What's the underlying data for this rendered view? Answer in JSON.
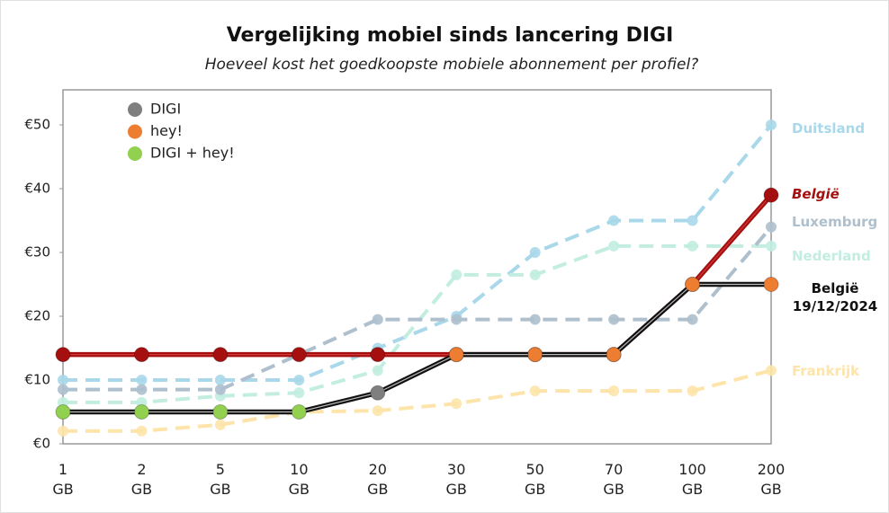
{
  "chart_data": {
    "type": "line",
    "title": "Vergelijking mobiel sinds lancering DIGI",
    "subtitle": "Hoeveel kost het goedkoopste mobiele abonnement per profiel?",
    "categories": [
      "1 GB",
      "2 GB",
      "5 GB",
      "10 GB",
      "20 GB",
      "30 GB",
      "50 GB",
      "70 GB",
      "100 GB",
      "200 GB"
    ],
    "ylim": [
      0,
      55.5
    ],
    "yticks": [
      {
        "value": 0,
        "label": "€0"
      },
      {
        "value": 10,
        "label": "€10"
      },
      {
        "value": 20,
        "label": "€20"
      },
      {
        "value": 30,
        "label": "€30"
      },
      {
        "value": 40,
        "label": "€40"
      },
      {
        "value": 50,
        "label": "€50"
      }
    ],
    "grid": false,
    "legend": [
      {
        "name": "DIGI",
        "color": "#7f7f7f"
      },
      {
        "name": "hey!",
        "color": "#ed7d31"
      },
      {
        "name": "DIGI + hey!",
        "color": "#92d050"
      }
    ],
    "series": [
      {
        "name": "Duitsland",
        "color": "#a8d8ea",
        "dashed": true,
        "values": [
          10,
          10,
          10,
          10,
          15,
          20,
          30,
          35,
          35,
          50
        ]
      },
      {
        "name": "Nederland",
        "color": "#c2ede0",
        "dashed": true,
        "values": [
          6.5,
          6.5,
          7.5,
          8,
          11.5,
          26.5,
          26.5,
          31,
          31,
          31
        ]
      },
      {
        "name": "Luxemburg",
        "color": "#aebfcd",
        "dashed": true,
        "values": [
          8.5,
          8.5,
          8.5,
          14,
          19.5,
          19.5,
          19.5,
          19.5,
          19.5,
          34
        ]
      },
      {
        "name": "Frankrijk",
        "color": "#fde4aa",
        "dashed": true,
        "values": [
          2,
          2,
          3,
          5,
          5.2,
          6.3,
          8.3,
          8.3,
          8.3,
          11.5
        ]
      },
      {
        "name": "België",
        "color": "#a50f0f",
        "dashed": false,
        "italic": true,
        "values": [
          14,
          14,
          14,
          14,
          14,
          14,
          14,
          14,
          25,
          39
        ]
      },
      {
        "name": "België 19/12/2024",
        "color": "#111111",
        "dashed": false,
        "values": [
          5,
          5,
          5,
          5,
          8,
          14,
          14,
          14,
          25,
          25
        ],
        "point_colors": [
          "#92d050",
          "#92d050",
          "#92d050",
          "#92d050",
          "#7f7f7f",
          "#ed7d31",
          "#ed7d31",
          "#ed7d31",
          "#ed7d31",
          "#ed7d31"
        ]
      }
    ]
  }
}
